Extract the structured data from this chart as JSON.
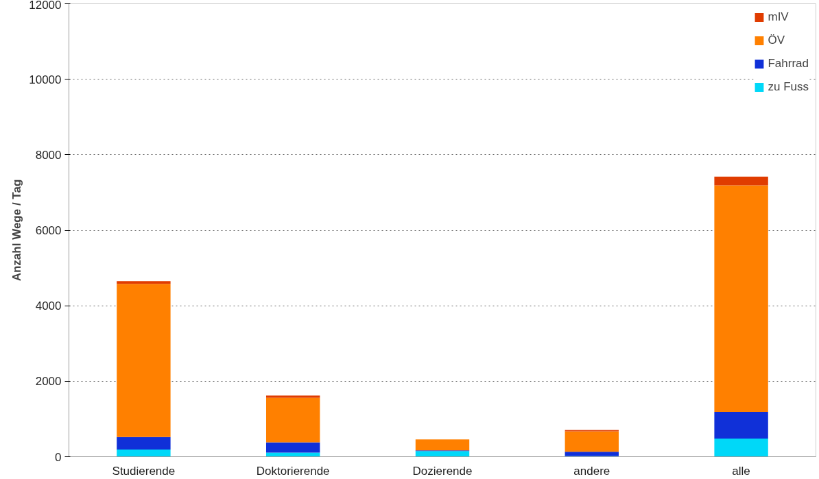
{
  "chart_data": {
    "type": "bar",
    "stacked": true,
    "ylabel": "Anzahl Wege / Tag",
    "categories": [
      "Studierende",
      "Doktorierende",
      "Dozierende",
      "andere",
      "alle"
    ],
    "series": [
      {
        "name": "zu Fuss",
        "color": "#00d8f8",
        "values": [
          190,
          110,
          150,
          20,
          480
        ]
      },
      {
        "name": "Fahrrad",
        "color": "#1030d8",
        "values": [
          330,
          270,
          20,
          110,
          710
        ]
      },
      {
        "name": "ÖV",
        "color": "#ff8000",
        "values": [
          4060,
          1180,
          290,
          540,
          6000
        ]
      },
      {
        "name": "mIV",
        "color": "#e03c00",
        "values": [
          70,
          60,
          0,
          40,
          230
        ]
      }
    ],
    "ylim": [
      0,
      12000
    ],
    "yticks": [
      0,
      2000,
      4000,
      6000,
      8000,
      10000,
      12000
    ],
    "grid": "y",
    "legend": "top right"
  }
}
